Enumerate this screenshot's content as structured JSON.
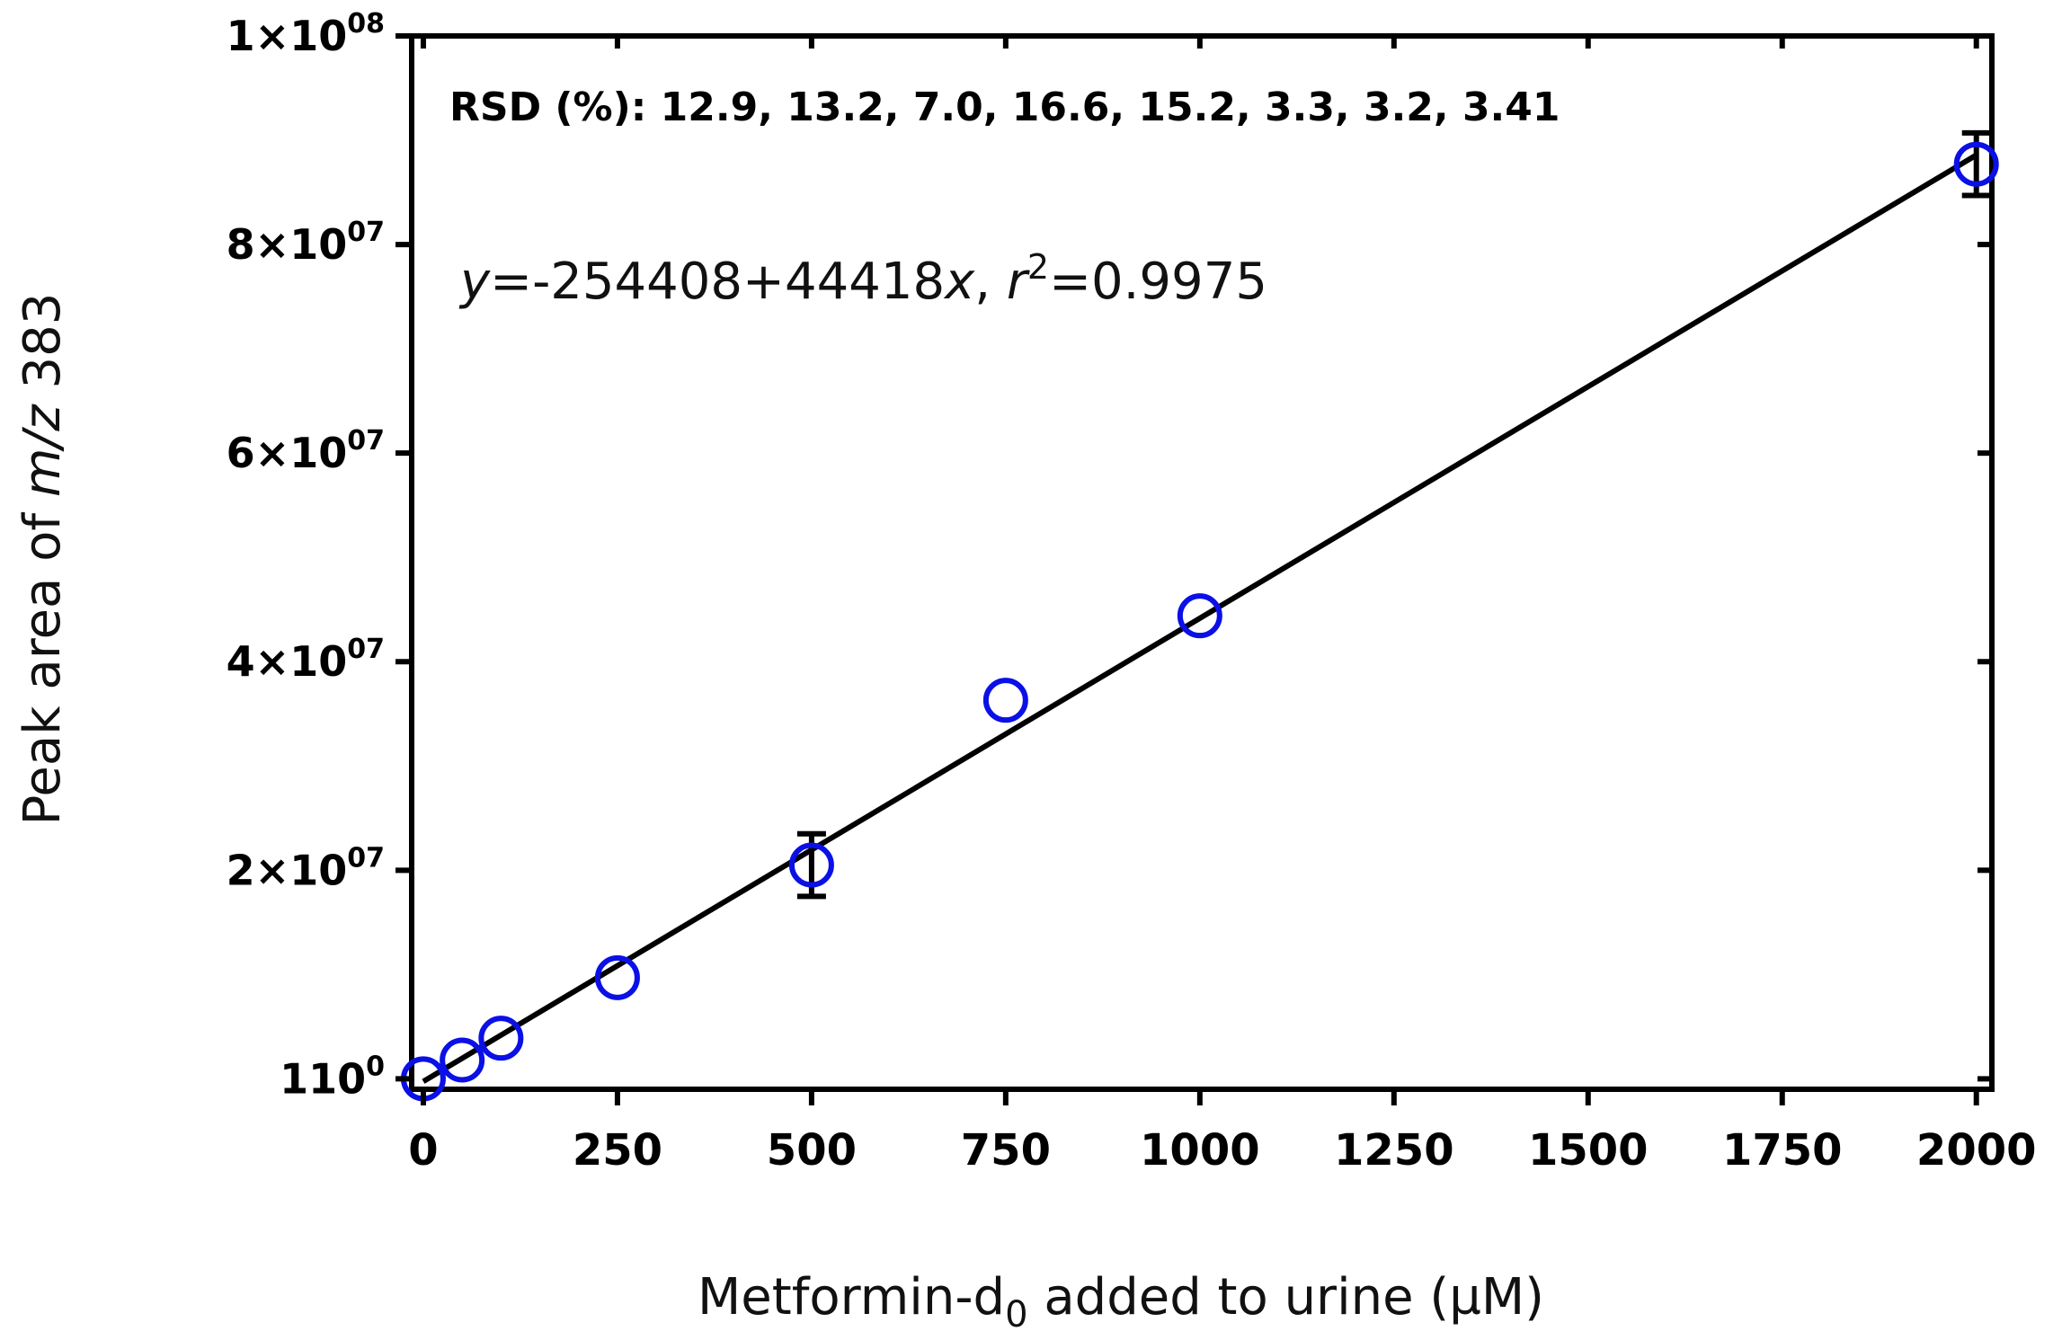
{
  "chart_data": {
    "type": "scatter",
    "xlabel_prefix": "Metformin-d",
    "xlabel_sub": "0",
    "xlabel_suffix": " added to urine (µM)",
    "ylabel_prefix": "Peak area of ",
    "ylabel_italic": "m/z",
    "ylabel_suffix": " 383",
    "xlim": [
      -15,
      2020
    ],
    "ylim": [
      -1000000,
      100000000
    ],
    "x_ticks": [
      0,
      250,
      500,
      750,
      1000,
      1250,
      1500,
      1750,
      2000
    ],
    "x_tick_labels": [
      "0",
      "250",
      "500",
      "750",
      "1000",
      "1250",
      "1500",
      "1750",
      "2000"
    ],
    "y_ticks": [
      {
        "value": 0,
        "mantissa": "1",
        "times": "",
        "exponent": "0"
      },
      {
        "value": 20000000,
        "mantissa": "2",
        "times": "×",
        "exponent": "07"
      },
      {
        "value": 40000000,
        "mantissa": "4",
        "times": "×",
        "exponent": "07"
      },
      {
        "value": 60000000,
        "mantissa": "6",
        "times": "×",
        "exponent": "07"
      },
      {
        "value": 80000000,
        "mantissa": "8",
        "times": "×",
        "exponent": "07"
      },
      {
        "value": 100000000,
        "mantissa": "1",
        "times": "×",
        "exponent": "08"
      }
    ],
    "y_tick_base": "10",
    "series": [
      {
        "color": "#0a10e6",
        "marker": "open-circle",
        "points": [
          {
            "x": 0,
            "y": 0,
            "err": 0
          },
          {
            "x": 50,
            "y": 1800000,
            "err": 0
          },
          {
            "x": 100,
            "y": 3900000,
            "err": 0
          },
          {
            "x": 250,
            "y": 9700000,
            "err": 0
          },
          {
            "x": 500,
            "y": 20500000,
            "err": 3000000
          },
          {
            "x": 750,
            "y": 36300000,
            "err": 0
          },
          {
            "x": 1000,
            "y": 44400000,
            "err": 0
          },
          {
            "x": 2000,
            "y": 87700000,
            "err": 3000000
          }
        ]
      }
    ],
    "fit_line": {
      "intercept": -254408,
      "slope": 44418,
      "x_range": [
        0,
        2000
      ],
      "color": "#000000"
    },
    "annotations": {
      "rsd": "RSD (%): 12.9, 13.2, 7.0, 16.6, 15.2, 3.3, 3.2, 3.41",
      "eq_y": "y",
      "eq_body": "=-254408+44418",
      "eq_x": "x",
      "eq_comma": ", ",
      "eq_r": "r",
      "eq_sup": "2",
      "eq_tail": "=0.9975"
    },
    "grid": false
  }
}
